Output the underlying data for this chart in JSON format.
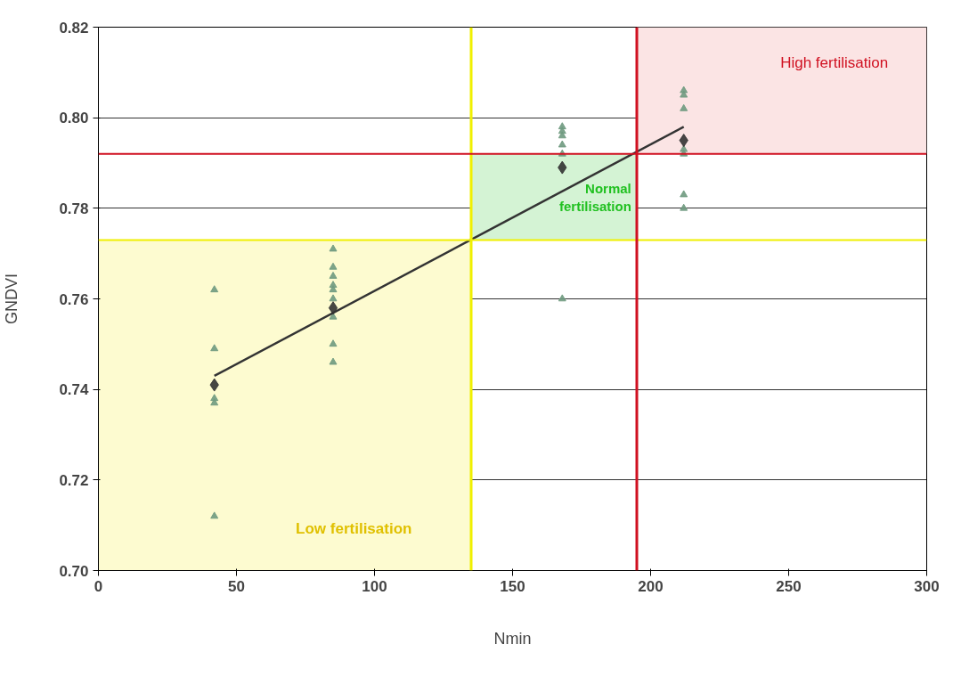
{
  "chart_data": {
    "type": "scatter",
    "xlabel": "Nmin",
    "ylabel": "GNDVI",
    "xlim": [
      0,
      300
    ],
    "xticks": [
      0,
      50,
      100,
      150,
      200,
      250,
      300
    ],
    "ylim": [
      0.7,
      0.82
    ],
    "yticks": [
      {
        "value": 0.7,
        "label": "0.70"
      },
      {
        "value": 0.72,
        "label": "0.72"
      },
      {
        "value": 0.74,
        "label": "0.74"
      },
      {
        "value": 0.76,
        "label": "0.76"
      },
      {
        "value": 0.78,
        "label": "0.78"
      },
      {
        "value": 0.8,
        "label": "0.80"
      },
      {
        "value": 0.82,
        "label": "0.82"
      }
    ],
    "grid": "y",
    "series": [
      {
        "marker": "triangle",
        "color": "#6f9a80",
        "x": [
          42,
          42,
          42,
          42,
          42,
          85,
          85,
          85,
          85,
          85,
          85,
          85,
          85,
          85,
          168,
          168,
          168,
          168,
          168,
          168,
          212,
          212,
          212,
          212,
          212,
          212,
          212
        ],
        "values": [
          0.762,
          0.749,
          0.738,
          0.737,
          0.712,
          0.771,
          0.767,
          0.765,
          0.763,
          0.762,
          0.76,
          0.756,
          0.75,
          0.746,
          0.798,
          0.797,
          0.796,
          0.794,
          0.792,
          0.76,
          0.806,
          0.805,
          0.802,
          0.793,
          0.792,
          0.783,
          0.78
        ]
      },
      {
        "marker": "diamond",
        "color": "#333333",
        "x": [
          42,
          85,
          168,
          212
        ],
        "values": [
          0.741,
          0.758,
          0.789,
          0.795
        ]
      },
      {
        "type": "line",
        "color": "#333333",
        "x": [
          42,
          212
        ],
        "values": [
          0.743,
          0.798
        ]
      }
    ],
    "ref_lines": [
      {
        "axis": "x",
        "value": 135,
        "color": "#f0f000"
      },
      {
        "axis": "y",
        "value": 0.773,
        "color": "#f0f000"
      },
      {
        "axis": "x",
        "value": 195,
        "color": "#d01020"
      },
      {
        "axis": "y",
        "value": 0.792,
        "color": "#d01020"
      }
    ],
    "bands": [
      {
        "axis": "x",
        "from": 0,
        "to": 135,
        "label": "Low fertilisation",
        "color": "#fdfbd0"
      },
      {
        "axis": "x",
        "from": 135,
        "to": 195,
        "label": "Normal fertilisation",
        "color": "#d4f3d4"
      },
      {
        "axis": "x",
        "from": 195,
        "to": 300,
        "label": "High fertilisation",
        "color": "#fbe4e4"
      }
    ]
  }
}
